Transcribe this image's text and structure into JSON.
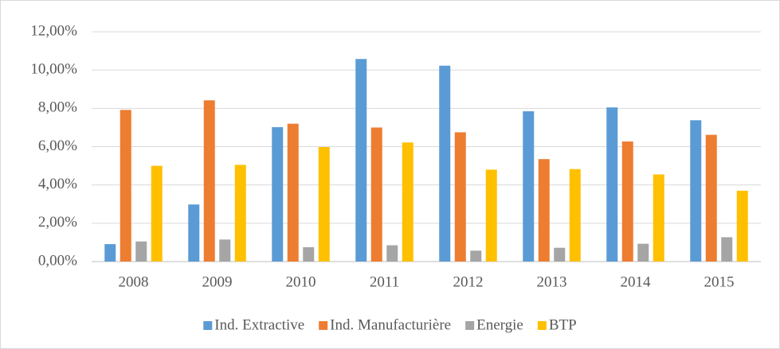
{
  "chart_data": {
    "type": "bar",
    "categories": [
      "2008",
      "2009",
      "2010",
      "2011",
      "2012",
      "2013",
      "2014",
      "2015"
    ],
    "series": [
      {
        "name": "Ind. Extractive",
        "color": "#5b9bd5",
        "values": [
          0.91,
          2.98,
          7.02,
          10.58,
          10.23,
          7.85,
          8.05,
          7.38
        ]
      },
      {
        "name": "Ind. Manufacturière",
        "color": "#ed7d31",
        "values": [
          7.92,
          8.42,
          7.2,
          7.0,
          6.75,
          5.35,
          6.27,
          6.62
        ]
      },
      {
        "name": "Energie",
        "color": "#a5a5a5",
        "values": [
          1.05,
          1.15,
          0.75,
          0.85,
          0.57,
          0.72,
          0.93,
          1.27
        ]
      },
      {
        "name": "BTP",
        "color": "#ffc000",
        "values": [
          5.0,
          5.05,
          5.98,
          6.22,
          4.8,
          4.83,
          4.55,
          3.7
        ]
      }
    ],
    "ylim": [
      0,
      12
    ],
    "yticks": [
      {
        "value": 0,
        "label": "0,00%"
      },
      {
        "value": 2,
        "label": "2,00%"
      },
      {
        "value": 4,
        "label": "4,00%"
      },
      {
        "value": 6,
        "label": "6,00%"
      },
      {
        "value": 8,
        "label": "8,00%"
      },
      {
        "value": 10,
        "label": "10,00%"
      },
      {
        "value": 12,
        "label": "12,00%"
      }
    ],
    "grid": true,
    "legend": "bottom"
  }
}
